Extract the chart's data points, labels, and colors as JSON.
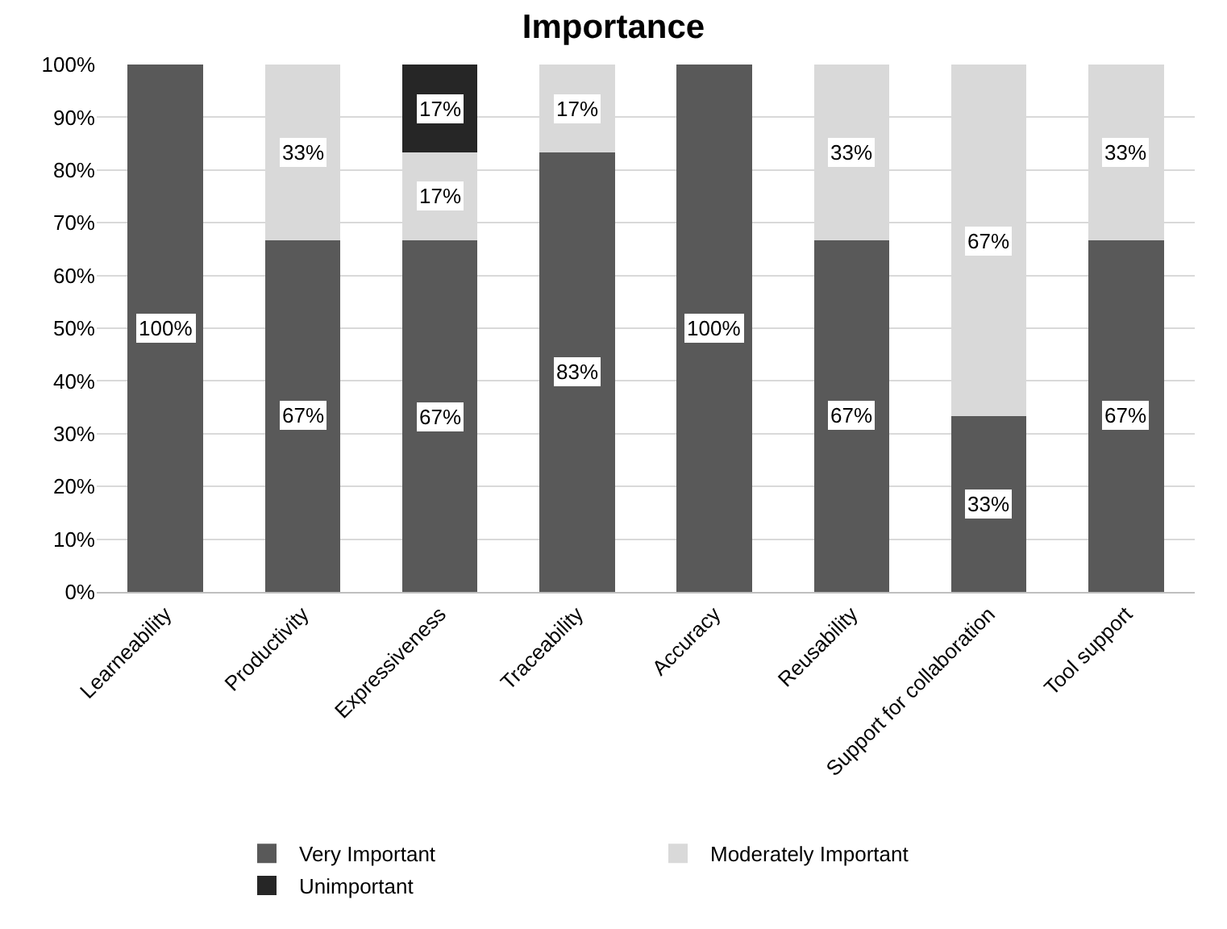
{
  "chart_data": {
    "type": "bar",
    "title": "Importance",
    "stacked": true,
    "categories": [
      "Learneability",
      "Productivity",
      "Expressiveness",
      "Traceability",
      "Accuracy",
      "Reusability",
      "Support for collaboration",
      "Tool support"
    ],
    "series": [
      {
        "name": "Very Important",
        "color": "#595959",
        "values": [
          100,
          66.7,
          66.6,
          83.3,
          100,
          66.7,
          33.3,
          66.7
        ],
        "value_labels": [
          "100%",
          "67%",
          "67%",
          "83%",
          "100%",
          "67%",
          "33%",
          "67%"
        ]
      },
      {
        "name": "Moderately Important",
        "color": "#d9d9d9",
        "values": [
          null,
          33.3,
          16.7,
          16.7,
          null,
          33.3,
          66.7,
          33.3
        ],
        "value_labels": [
          null,
          "33%",
          "17%",
          "17%",
          null,
          "33%",
          "67%",
          "33%"
        ]
      },
      {
        "name": "Unimportant",
        "color": "#262626",
        "values": [
          null,
          null,
          16.7,
          null,
          null,
          null,
          null,
          null
        ],
        "value_labels": [
          null,
          null,
          "17%",
          null,
          null,
          null,
          null,
          null
        ]
      }
    ],
    "ylim": [
      0,
      100
    ],
    "yticks": [
      {
        "value": 0,
        "label": "0%"
      },
      {
        "value": 10,
        "label": "10%"
      },
      {
        "value": 20,
        "label": "20%"
      },
      {
        "value": 30,
        "label": "30%"
      },
      {
        "value": 40,
        "label": "40%"
      },
      {
        "value": 50,
        "label": "50%"
      },
      {
        "value": 60,
        "label": "60%"
      },
      {
        "value": 70,
        "label": "70%"
      },
      {
        "value": 80,
        "label": "80%"
      },
      {
        "value": 90,
        "label": "90%"
      },
      {
        "value": 100,
        "label": "100%"
      }
    ],
    "grid": "y",
    "legend": "bottom"
  }
}
